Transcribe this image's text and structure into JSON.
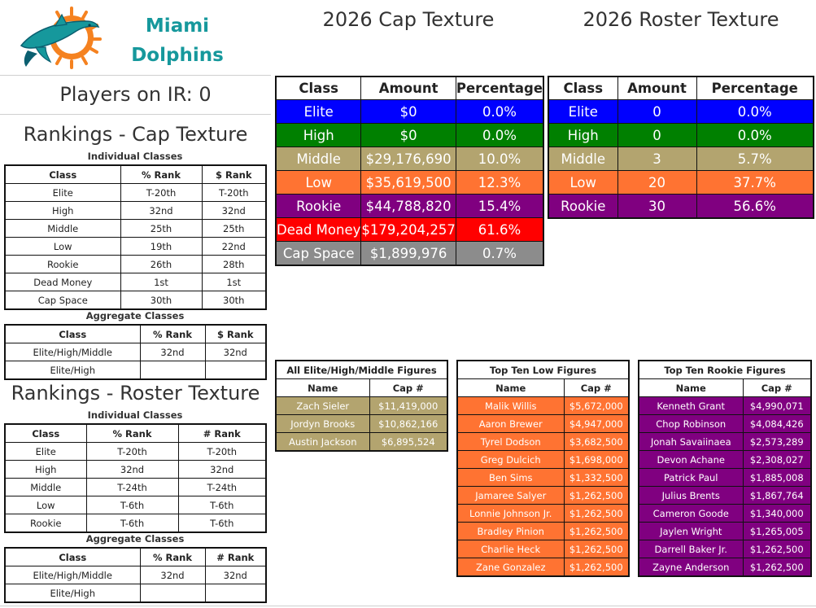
{
  "team": {
    "line1": "Miami",
    "line2": "Dolphins",
    "logo_icon": "dolphin-logo-icon"
  },
  "players_on_ir": "Players on IR: 0",
  "colors": {
    "elite": "#0000ff",
    "high": "#008000",
    "middle": "#b3a46f",
    "low": "#ff7332",
    "rookie": "#800080",
    "dead_money": "#ff0000",
    "cap_space": "#8c8c8c",
    "teal": "#16989c",
    "orange": "#f58220"
  },
  "cap_rankings": {
    "title": "Rankings - Cap Texture",
    "individual_label": "Individual Classes",
    "individual_headers": [
      "Class",
      "% Rank",
      "$ Rank"
    ],
    "individual_rows": [
      [
        "Elite",
        "T-20th",
        "T-20th"
      ],
      [
        "High",
        "32nd",
        "32nd"
      ],
      [
        "Middle",
        "25th",
        "25th"
      ],
      [
        "Low",
        "19th",
        "22nd"
      ],
      [
        "Rookie",
        "26th",
        "28th"
      ],
      [
        "Dead Money",
        "1st",
        "1st"
      ],
      [
        "Cap Space",
        "30th",
        "30th"
      ]
    ],
    "aggregate_label": "Aggregate Classes",
    "aggregate_headers": [
      "Class",
      "% Rank",
      "$ Rank"
    ],
    "aggregate_rows": [
      [
        "Elite/High/Middle",
        "32nd",
        "32nd"
      ],
      [
        "Elite/High",
        "",
        ""
      ]
    ]
  },
  "roster_rankings": {
    "title": "Rankings - Roster Texture",
    "individual_label": "Individual Classes",
    "individual_headers": [
      "Class",
      "% Rank",
      "# Rank"
    ],
    "individual_rows": [
      [
        "Elite",
        "T-20th",
        "T-20th"
      ],
      [
        "High",
        "32nd",
        "32nd"
      ],
      [
        "Middle",
        "T-24th",
        "T-24th"
      ],
      [
        "Low",
        "T-6th",
        "T-6th"
      ],
      [
        "Rookie",
        "T-6th",
        "T-6th"
      ]
    ],
    "aggregate_label": "Aggregate Classes",
    "aggregate_headers": [
      "Class",
      "% Rank",
      "# Rank"
    ],
    "aggregate_rows": [
      [
        "Elite/High/Middle",
        "32nd",
        "32nd"
      ],
      [
        "Elite/High",
        "",
        ""
      ]
    ]
  },
  "cap_texture": {
    "title": "2026 Cap Texture",
    "headers": [
      "Class",
      "Amount",
      "Percentage"
    ],
    "rows": [
      [
        "Elite",
        "$0",
        "0.0%"
      ],
      [
        "High",
        "$0",
        "0.0%"
      ],
      [
        "Middle",
        "$29,176,690",
        "10.0%"
      ],
      [
        "Low",
        "$35,619,500",
        "12.3%"
      ],
      [
        "Rookie",
        "$44,788,820",
        "15.4%"
      ],
      [
        "Dead Money",
        "$179,204,257",
        "61.6%"
      ],
      [
        "Cap Space",
        "$1,899,976",
        "0.7%"
      ]
    ]
  },
  "roster_texture": {
    "title": "2026 Roster Texture",
    "headers": [
      "Class",
      "Amount",
      "Percentage"
    ],
    "rows": [
      [
        "Elite",
        "0",
        "0.0%"
      ],
      [
        "High",
        "0",
        "0.0%"
      ],
      [
        "Middle",
        "3",
        "5.7%"
      ],
      [
        "Low",
        "20",
        "37.7%"
      ],
      [
        "Rookie",
        "30",
        "56.6%"
      ]
    ]
  },
  "ehm_figures": {
    "title": "All Elite/High/Middle Figures",
    "headers": [
      "Name",
      "Cap #"
    ],
    "rows": [
      [
        "Zach Sieler",
        "$11,419,000"
      ],
      [
        "Jordyn Brooks",
        "$10,862,166"
      ],
      [
        "Austin Jackson",
        "$6,895,524"
      ]
    ]
  },
  "low_figures": {
    "title": "Top Ten Low Figures",
    "headers": [
      "Name",
      "Cap #"
    ],
    "rows": [
      [
        "Malik Willis",
        "$5,672,000"
      ],
      [
        "Aaron Brewer",
        "$4,947,000"
      ],
      [
        "Tyrel Dodson",
        "$3,682,500"
      ],
      [
        "Greg Dulcich",
        "$1,698,000"
      ],
      [
        "Ben Sims",
        "$1,332,500"
      ],
      [
        "Jamaree Salyer",
        "$1,262,500"
      ],
      [
        "Lonnie Johnson Jr.",
        "$1,262,500"
      ],
      [
        "Bradley Pinion",
        "$1,262,500"
      ],
      [
        "Charlie Heck",
        "$1,262,500"
      ],
      [
        "Zane Gonzalez",
        "$1,262,500"
      ]
    ]
  },
  "rookie_figures": {
    "title": "Top Ten Rookie Figures",
    "headers": [
      "Name",
      "Cap #"
    ],
    "rows": [
      [
        "Kenneth Grant",
        "$4,990,071"
      ],
      [
        "Chop Robinson",
        "$4,084,426"
      ],
      [
        "Jonah Savaiinaea",
        "$2,573,289"
      ],
      [
        "Devon Achane",
        "$2,308,027"
      ],
      [
        "Patrick Paul",
        "$1,885,008"
      ],
      [
        "Julius Brents",
        "$1,867,764"
      ],
      [
        "Cameron Goode",
        "$1,340,000"
      ],
      [
        "Jaylen Wright",
        "$1,265,005"
      ],
      [
        "Darrell Baker Jr.",
        "$1,262,500"
      ],
      [
        "Zayne Anderson",
        "$1,262,500"
      ]
    ]
  }
}
